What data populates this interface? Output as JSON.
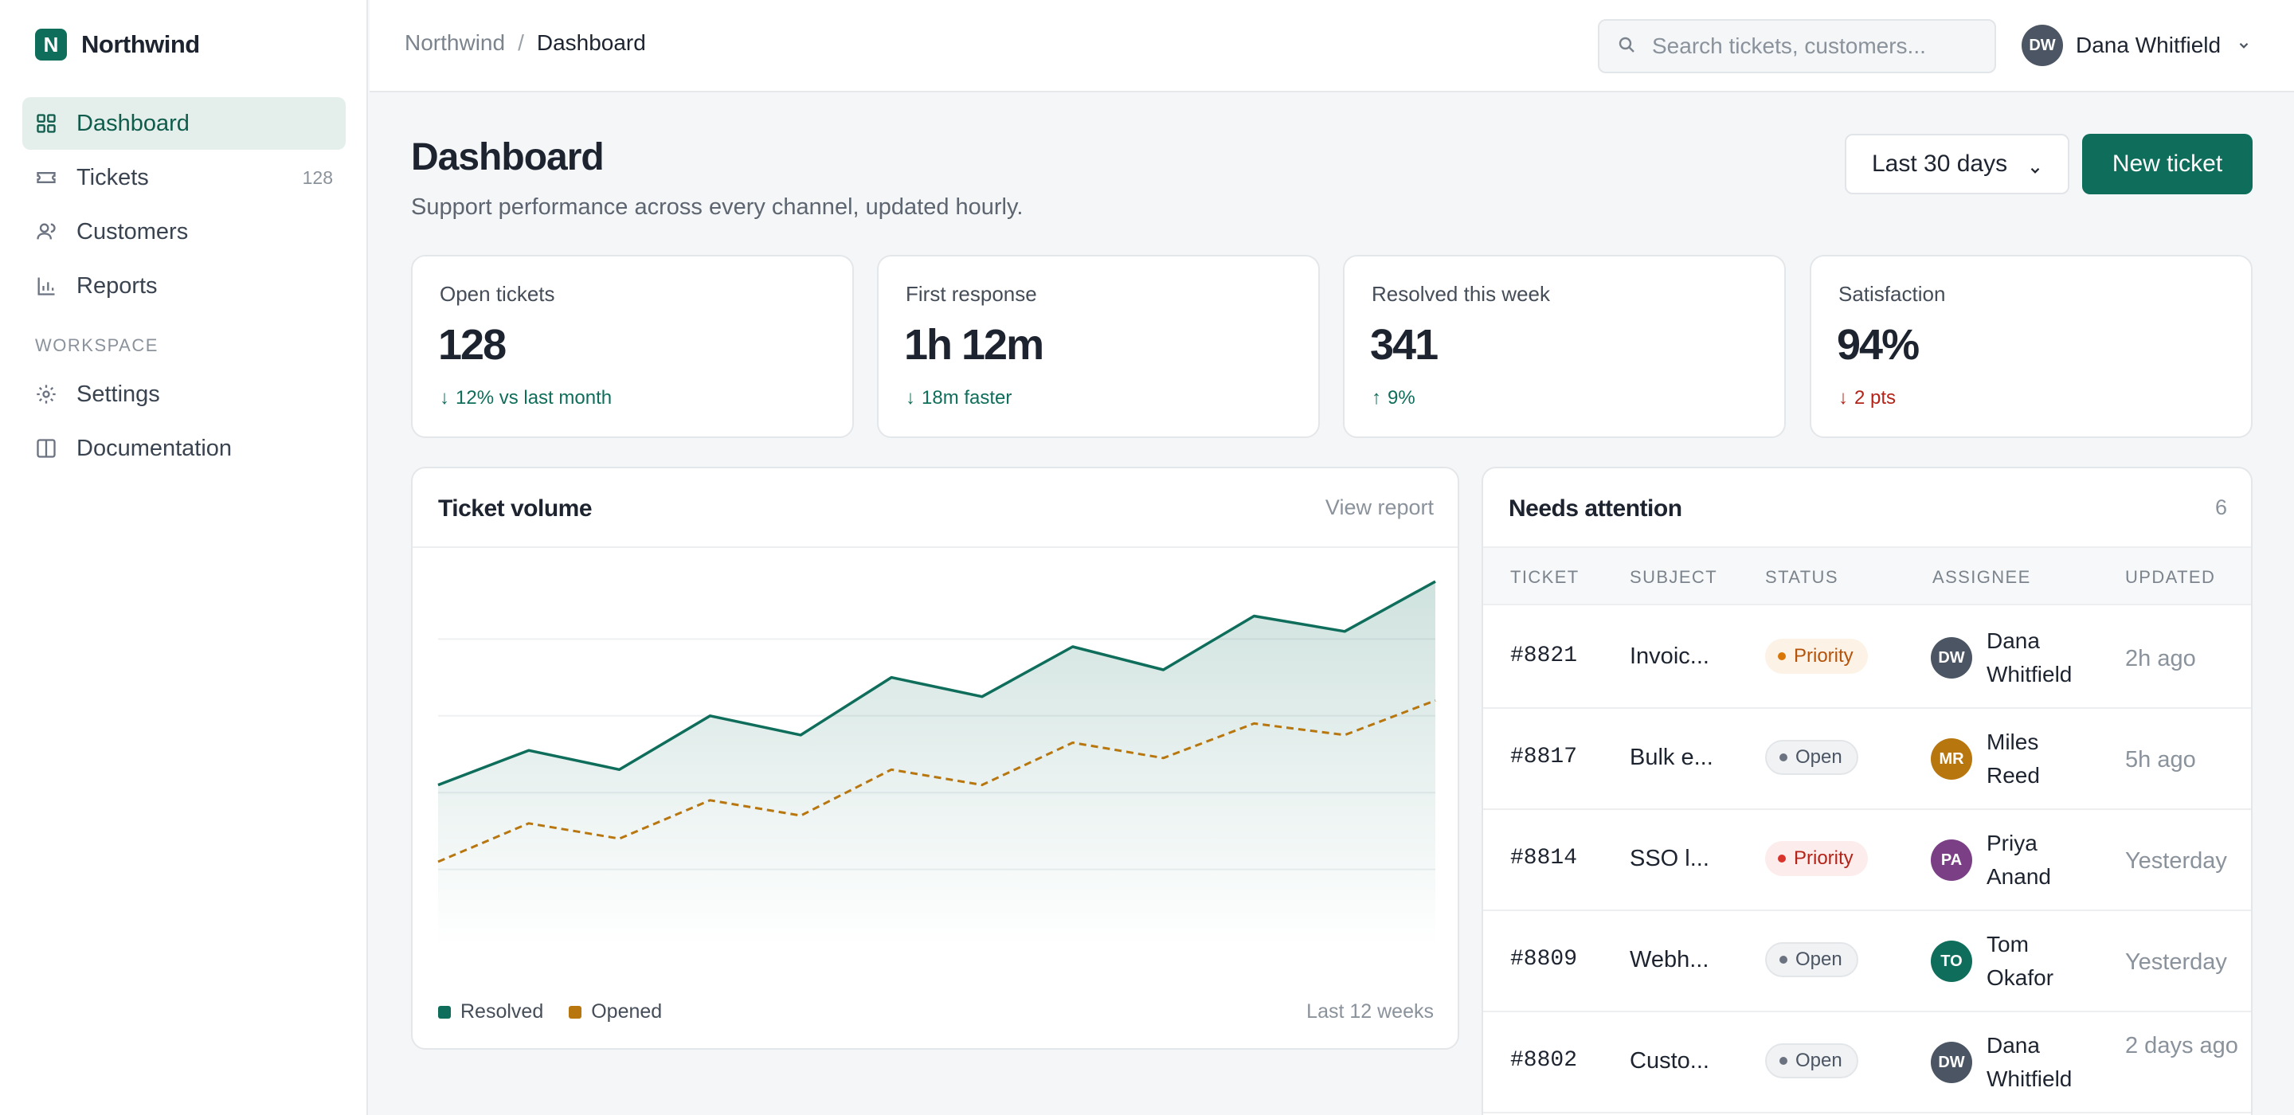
{
  "app": {
    "name": "Northwind",
    "logo_letter": "N"
  },
  "sidebar": {
    "items": [
      {
        "label": "Dashboard",
        "icon": "grid-icon",
        "active": true
      },
      {
        "label": "Tickets",
        "icon": "ticket-icon",
        "count": "128"
      },
      {
        "label": "Customers",
        "icon": "user-icon"
      },
      {
        "label": "Reports",
        "icon": "bar-chart-icon"
      }
    ],
    "section_label": "WORKSPACE",
    "workspace_items": [
      {
        "label": "Settings",
        "icon": "gear-icon"
      },
      {
        "label": "Documentation",
        "icon": "book-icon"
      }
    ]
  },
  "topbar": {
    "breadcrumb": {
      "root": "Northwind",
      "separator": "/",
      "current": "Dashboard"
    },
    "search_placeholder": "Search tickets, customers...",
    "user": {
      "initials": "DW",
      "name": "Dana Whitfield"
    }
  },
  "page": {
    "title": "Dashboard",
    "subtitle": "Support performance across every channel, updated hourly.",
    "range_label": "Last 30 days",
    "new_button_label": "New ticket"
  },
  "kpis": [
    {
      "label": "Open tickets",
      "value": "128",
      "arrow": "↓",
      "delta": "12% vs last month",
      "tone": "good"
    },
    {
      "label": "First response",
      "value": "1h 12m",
      "arrow": "↓",
      "delta": "18m faster",
      "tone": "good"
    },
    {
      "label": "Resolved this week",
      "value": "341",
      "arrow": "↑",
      "delta": "9%",
      "tone": "good"
    },
    {
      "label": "Satisfaction",
      "value": "94%",
      "arrow": "↓",
      "delta": "2 pts",
      "tone": "bad"
    }
  ],
  "chart_card": {
    "title": "Ticket volume",
    "link": "View report",
    "footer": "Last 12 weeks"
  },
  "chart_data": {
    "type": "line",
    "x": [
      1,
      2,
      3,
      4,
      5,
      6,
      7,
      8,
      9,
      10,
      11,
      12
    ],
    "ylim": [
      0,
      100
    ],
    "grid": true,
    "legend": "bottom-left",
    "series": [
      {
        "name": "Resolved",
        "color": "#0f6e5b",
        "style": "solid-area",
        "values": [
          42,
          51,
          46,
          60,
          55,
          70,
          65,
          78,
          72,
          86,
          82,
          95
        ]
      },
      {
        "name": "Opened",
        "color": "#b8760f",
        "style": "dashed",
        "values": [
          22,
          32,
          28,
          38,
          34,
          46,
          42,
          53,
          49,
          58,
          55,
          64
        ]
      }
    ]
  },
  "attention": {
    "title": "Needs attention",
    "count": "6",
    "columns": [
      "TICKET",
      "SUBJECT",
      "STATUS",
      "ASSIGNEE",
      "UPDATED"
    ],
    "rows": [
      {
        "id": "#8821",
        "subject": "Invoic...",
        "status": "Priority",
        "status_tone": "amber",
        "initials": "DW",
        "avatar_color": "#4b5563",
        "assignee": "Dana Whitfield",
        "updated": "2h ago"
      },
      {
        "id": "#8817",
        "subject": "Bulk e...",
        "status": "Open",
        "status_tone": "neutral",
        "initials": "MR",
        "avatar_color": "#b8760f",
        "assignee": "Miles Reed",
        "updated": "5h ago"
      },
      {
        "id": "#8814",
        "subject": "SSO l...",
        "status": "Priority",
        "status_tone": "red",
        "initials": "PA",
        "avatar_color": "#7b3f86",
        "assignee": "Priya Anand",
        "updated": "Yesterday"
      },
      {
        "id": "#8809",
        "subject": "Webh...",
        "status": "Open",
        "status_tone": "neutral",
        "initials": "TO",
        "avatar_color": "#0f6e5b",
        "assignee": "Tom Okafor",
        "updated": "Yesterday"
      },
      {
        "id": "#8802",
        "subject": "Custo...",
        "status": "Open",
        "status_tone": "neutral",
        "initials": "DW",
        "avatar_color": "#4b5563",
        "assignee": "Dana Whitfield",
        "updated": "2 days ago"
      }
    ]
  }
}
